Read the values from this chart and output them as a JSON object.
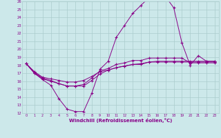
{
  "bg_color": "#cce8ea",
  "grid_color": "#aacccc",
  "line_color": "#880088",
  "marker": "+",
  "xlabel": "Windchill (Refroidissement éolien,°C)",
  "xlabel_color": "#880088",
  "ylim": [
    12,
    26
  ],
  "xlim": [
    -0.5,
    23.5
  ],
  "yticks": [
    12,
    13,
    14,
    15,
    16,
    17,
    18,
    19,
    20,
    21,
    22,
    23,
    24,
    25,
    26
  ],
  "xticks": [
    0,
    1,
    2,
    3,
    4,
    5,
    6,
    7,
    8,
    9,
    10,
    11,
    12,
    13,
    14,
    15,
    16,
    17,
    18,
    19,
    20,
    21,
    22,
    23
  ],
  "series1_x": [
    0,
    1,
    2,
    3,
    4,
    5,
    6,
    7,
    8,
    9,
    10,
    11,
    12,
    13,
    14,
    15,
    16,
    17,
    18,
    19,
    20,
    21,
    22,
    23
  ],
  "series1_y": [
    18.2,
    17.0,
    16.2,
    15.5,
    13.8,
    12.5,
    12.2,
    12.2,
    14.5,
    17.5,
    18.5,
    21.5,
    23.0,
    24.5,
    25.5,
    26.5,
    26.2,
    26.6,
    25.2,
    20.8,
    18.0,
    19.2,
    18.5,
    18.5
  ],
  "series2_x": [
    0,
    1,
    2,
    3,
    4,
    5,
    6,
    7,
    8,
    9,
    10,
    11,
    12,
    13,
    14,
    15,
    16,
    17,
    18,
    19,
    20,
    21,
    22,
    23
  ],
  "series2_y": [
    18.2,
    17.2,
    16.5,
    16.3,
    16.1,
    15.9,
    15.9,
    16.1,
    16.6,
    17.2,
    17.4,
    17.7,
    17.9,
    18.1,
    18.2,
    18.4,
    18.5,
    18.5,
    18.5,
    18.5,
    18.5,
    18.5,
    18.5,
    18.5
  ],
  "series3_x": [
    0,
    1,
    2,
    3,
    4,
    5,
    6,
    7,
    8,
    9,
    10,
    11,
    12,
    13,
    14,
    15,
    16,
    17,
    18,
    19,
    20,
    21,
    22,
    23
  ],
  "series3_y": [
    18.2,
    17.0,
    16.3,
    16.0,
    15.7,
    15.4,
    15.4,
    15.6,
    16.4,
    17.3,
    17.6,
    18.1,
    18.3,
    18.6,
    18.6,
    18.9,
    18.9,
    18.9,
    18.9,
    18.9,
    18.3,
    18.3,
    18.3,
    18.3
  ],
  "series4_x": [
    0,
    1,
    2,
    3,
    4,
    5,
    6,
    7,
    8,
    9,
    10,
    11,
    12,
    13,
    14,
    15,
    16,
    17,
    18,
    19,
    20,
    21,
    22,
    23
  ],
  "series4_y": [
    18.2,
    17.1,
    16.4,
    16.1,
    15.7,
    15.4,
    15.4,
    15.4,
    16.1,
    16.9,
    17.4,
    17.7,
    17.9,
    18.1,
    18.1,
    18.4,
    18.4,
    18.4,
    18.4,
    18.4,
    18.4,
    18.4,
    18.4,
    18.4
  ]
}
